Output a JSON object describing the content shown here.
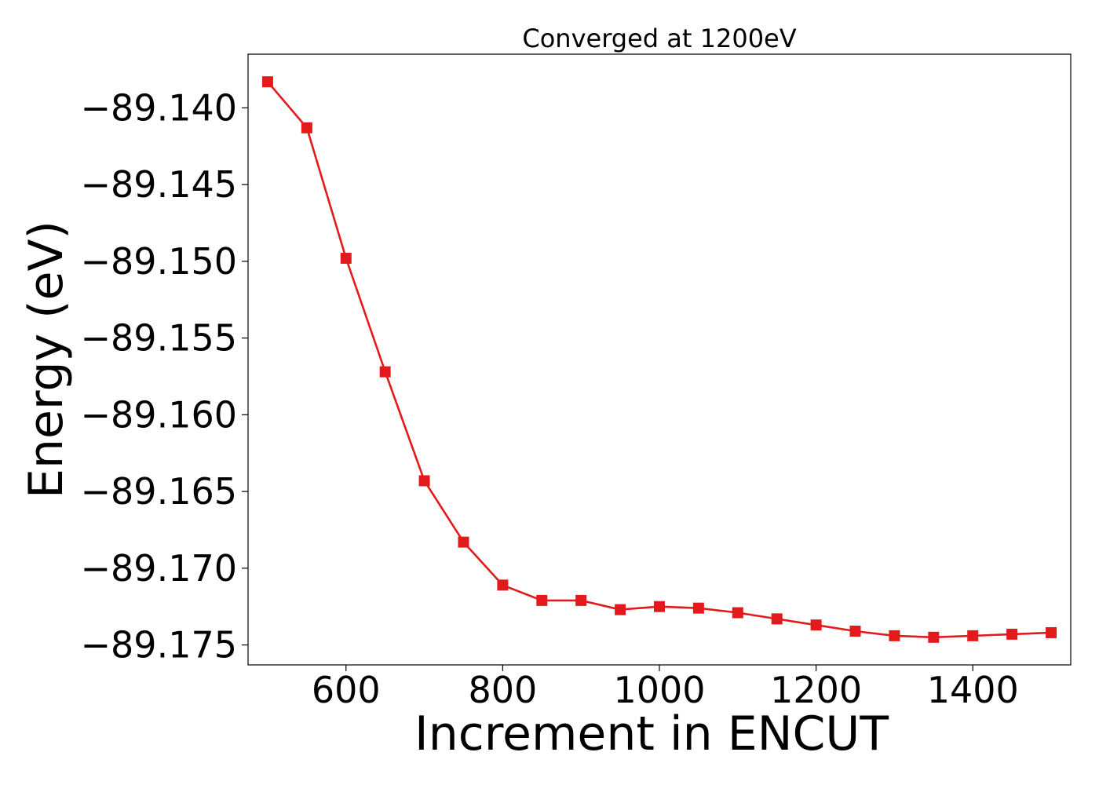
{
  "chart_data": {
    "type": "line",
    "title": "Converged at 1200eV",
    "xlabel": "Increment in ENCUT",
    "ylabel": "Energy (eV)",
    "x": [
      500,
      550,
      600,
      650,
      700,
      750,
      800,
      850,
      900,
      950,
      1000,
      1050,
      1100,
      1150,
      1200,
      1250,
      1300,
      1350,
      1400,
      1450,
      1500
    ],
    "series": [
      {
        "values": [
          -89.1383,
          -89.1413,
          -89.1498,
          -89.1572,
          -89.1643,
          -89.1683,
          -89.1711,
          -89.1721,
          -89.1721,
          -89.1727,
          -89.1725,
          -89.1726,
          -89.1729,
          -89.1733,
          -89.1737,
          -89.1741,
          -89.1744,
          -89.1745,
          -89.1744,
          -89.1743,
          -89.1742
        ],
        "color": "#e31a1c",
        "marker": "square"
      }
    ],
    "xlim": [
      475,
      1525
    ],
    "ylim": [
      -89.1763,
      -89.1365
    ],
    "xticks": [
      600,
      800,
      1000,
      1200,
      1400
    ],
    "xtick_labels": [
      "600",
      "800",
      "1000",
      "1200",
      "1400"
    ],
    "yticks": [
      -89.14,
      -89.145,
      -89.15,
      -89.155,
      -89.16,
      -89.165,
      -89.17,
      -89.175
    ],
    "ytick_labels": [
      "−89.140",
      "−89.145",
      "−89.150",
      "−89.155",
      "−89.160",
      "−89.165",
      "−89.170",
      "−89.175"
    ],
    "grid": false,
    "legend": "none"
  }
}
